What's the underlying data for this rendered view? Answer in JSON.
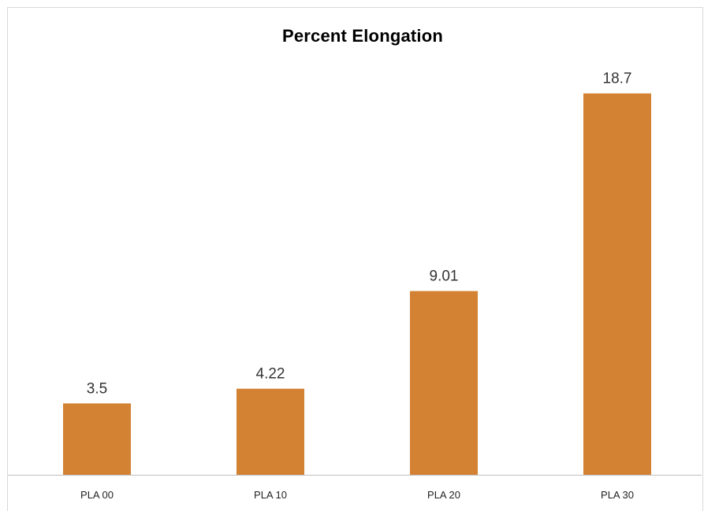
{
  "chart_data": {
    "type": "bar",
    "title": "Percent Elongation",
    "categories": [
      "PLA 00",
      "PLA 10",
      "PLA 20",
      "PLA 30"
    ],
    "values": [
      3.5,
      4.22,
      9.01,
      18.7
    ],
    "data_labels": [
      "3.5",
      "4.22",
      "9.01",
      "18.7"
    ],
    "xlabel": "",
    "ylabel": "",
    "ylim": [
      0,
      20
    ],
    "grid": false,
    "legend": "none",
    "colors": {
      "bar": "#d38133"
    }
  }
}
